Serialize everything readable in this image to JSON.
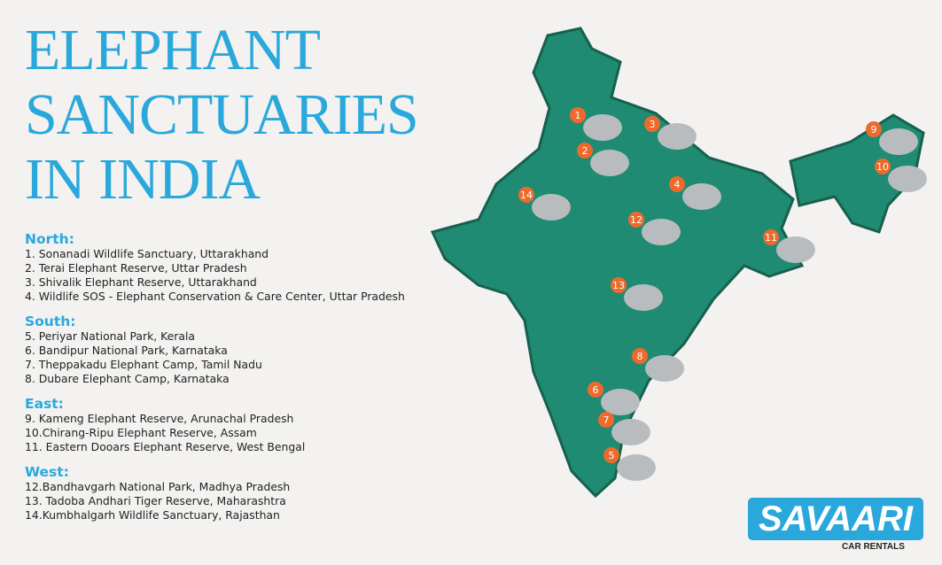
{
  "title": [
    "ELEPHANT",
    "SANCTUARIES",
    "IN INDIA"
  ],
  "legend": [
    {
      "heading": "North:",
      "items": [
        "1.  Sonanadi Wildlife Sanctuary, Uttarakhand",
        "2.  Terai Elephant Reserve, Uttar Pradesh",
        "3.  Shivalik Elephant Reserve, Uttarakhand",
        "4.  Wildlife SOS - Elephant Conservation & Care Center, Uttar Pradesh"
      ]
    },
    {
      "heading": "South:",
      "items": [
        "5.  Periyar National Park, Kerala",
        "6.  Bandipur National Park, Karnataka",
        "7.  Theppakadu Elephant Camp, Tamil Nadu",
        "8.  Dubare Elephant Camp, Karnataka"
      ]
    },
    {
      "heading": "East:",
      "items": [
        "9.  Kameng Elephant Reserve, Arunachal Pradesh",
        "10.Chirang-Ripu Elephant Reserve, Assam",
        "11. Eastern Dooars Elephant Reserve, West Bengal"
      ]
    },
    {
      "heading": "West:",
      "items": [
        "12.Bandhavgarh National Park, Madhya Pradesh",
        "13. Tadoba Andhari Tiger Reserve, Maharashtra",
        "14.Kumbhalgarh Wildlife Sanctuary, Rajasthan"
      ]
    }
  ],
  "markers": [
    "1",
    "2",
    "3",
    "4",
    "5",
    "6",
    "7",
    "8",
    "9",
    "10",
    "11",
    "12",
    "13",
    "14"
  ],
  "colors": {
    "accent": "#2aa8dc",
    "map": "#1f8b73",
    "marker": "#ee6a2c",
    "elephant": "#b9bcbf"
  },
  "logo": {
    "name": "SAVAARI",
    "tagline": "CAR RENTALS"
  }
}
